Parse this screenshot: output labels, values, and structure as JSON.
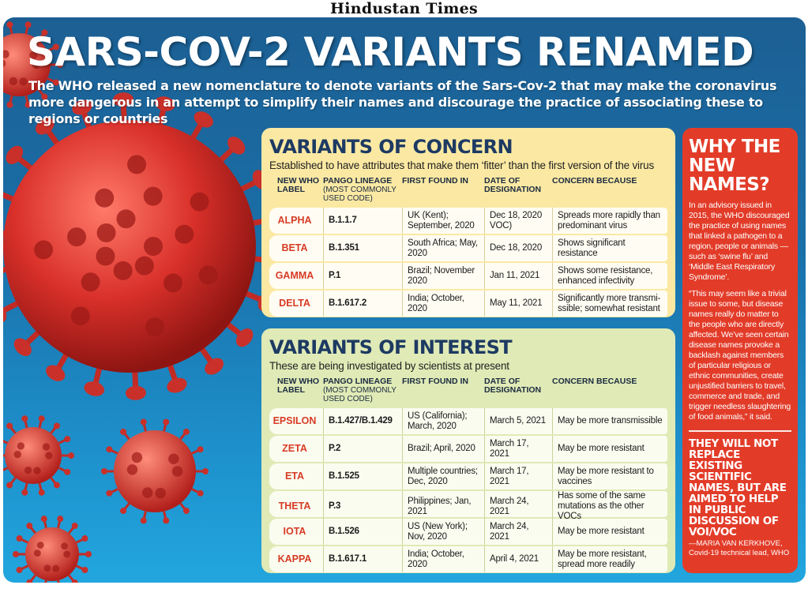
{
  "masthead": "Hindustan Times",
  "title": "SARS-COV-2 VARIANTS RENAMED",
  "subtitle": "The WHO released a new nomenclature to denote variants of the Sars-Cov-2 that may make the coronavirus more dangerous in an attempt to simplify their names and discourage the practice of associating these to regions or countries",
  "headers": {
    "label": "NEW WHO LABEL",
    "lineage": "PANGO LINEAGE",
    "lineage_note": "(MOST COMMONLY USED CODE)",
    "found": "FIRST FOUND IN",
    "date": "DATE OF DESIGNATION",
    "concern": "CONCERN BECAUSE"
  },
  "concern": {
    "title": "VARIANTS OF CONCERN",
    "sub": "Established to have attributes that make them ‘fitter’ than the first version of the virus",
    "rows": [
      {
        "name": "ALPHA",
        "lineage": "B.1.1.7",
        "found": "UK (Kent); September, 2020",
        "date": "Dec 18, 2020 VOC)",
        "concern": "Spreads more rapidly than predominant virus"
      },
      {
        "name": "BETA",
        "lineage": "B.1.351",
        "found": "South Africa; May, 2020",
        "date": "Dec 18, 2020",
        "concern": "Shows significant resistance"
      },
      {
        "name": "GAMMA",
        "lineage": "P.1",
        "found": "Brazil; November 2020",
        "date": "Jan 11, 2021",
        "concern": "Shows some resistance, enhanced infectivity"
      },
      {
        "name": "DELTA",
        "lineage": "B.1.617.2",
        "found": "India; October, 2020",
        "date": "May 11, 2021",
        "concern": "Significantly more transmi-ssible; somewhat resistant"
      }
    ]
  },
  "interest": {
    "title": "VARIANTS OF INTEREST",
    "sub": "These are being investigated by scientists at present",
    "rows": [
      {
        "name": "EPSILON",
        "lineage": "B.1.427/B.1.429",
        "found": "US (California); March, 2020",
        "date": "March 5, 2021",
        "concern": "May be more transmissible"
      },
      {
        "name": "ZETA",
        "lineage": "P.2",
        "found": "Brazil; April, 2020",
        "date": "March 17, 2021",
        "concern": "May be more resistant"
      },
      {
        "name": "ETA",
        "lineage": "B.1.525",
        "found": "Multiple countries; Dec, 2020",
        "date": "March 17, 2021",
        "concern": "May be more resistant to vaccines"
      },
      {
        "name": "THETA",
        "lineage": "P.3",
        "found": "Philippines; Jan, 2021",
        "date": "March 24, 2021",
        "concern": "Has some of the same mutations as the other VOCs"
      },
      {
        "name": "IOTA",
        "lineage": "B.1.526",
        "found": "US (New York); Nov, 2020",
        "date": "March 24, 2021",
        "concern": "May be more resistant"
      },
      {
        "name": "KAPPA",
        "lineage": "B.1.617.1",
        "found": "India; October, 2020",
        "date": "April 4, 2021",
        "concern": "May be more resistant, spread more readily"
      }
    ]
  },
  "why": {
    "title": "WHY THE NEW NAMES?",
    "p1": "In an advisory issued in 2015, the WHO discouraged the practice of using names that linked a pathogen to a region, people or animals — such as ‘swine flu’ and ‘Middle East Respiratory Syndrome’.",
    "p2": "“This may seem like a trivial issue to some, but disease names really do matter to the people who are directly affected. We’ve seen certain disease names provoke a backlash against members of particular religious or ethnic communities, create unjustified barriers to travel, commerce and trade, and trigger needless slaughtering of food animals,” it said.",
    "quote": "THEY WILL NOT REPLACE EXISTING SCIENTIFIC NAMES, BUT ARE AIMED TO HELP IN PUBLIC DISCUSSION OF VOI/VOC",
    "attr": "—MARIA VAN KERKHOVE, Covid-19 technical lead, WHO"
  },
  "colors": {
    "background_top": "#1c5f93",
    "background_bottom": "#22a6de",
    "concern_panel": "#fbe9a3",
    "interest_panel": "#dfeab6",
    "why_panel": "#e23c29",
    "variant_name": "#d63b25",
    "virus": "#d9302a"
  },
  "icons": [
    "coronavirus-illustration"
  ]
}
